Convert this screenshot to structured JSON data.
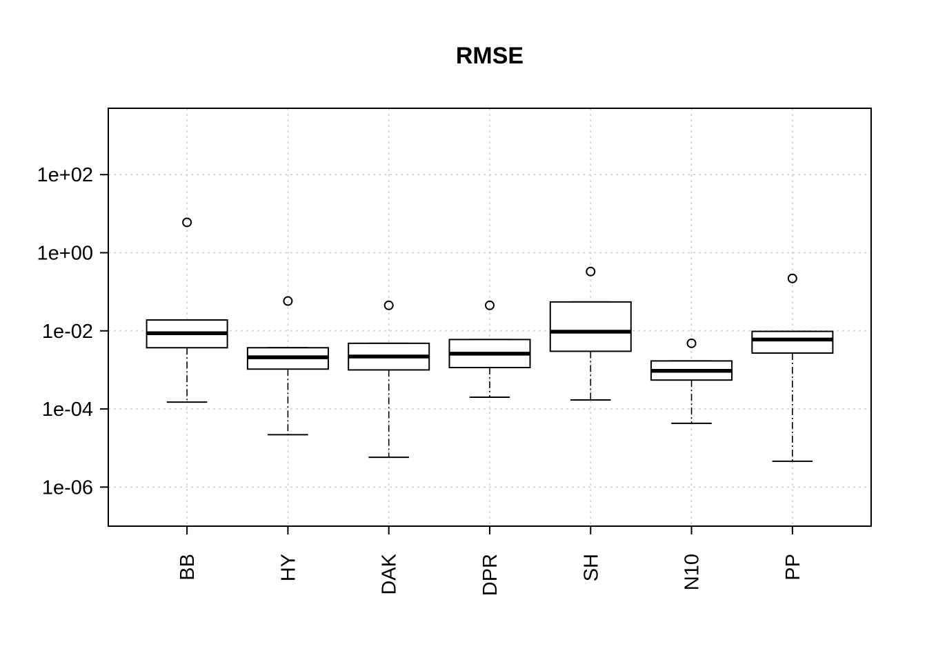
{
  "chart_data": {
    "type": "boxplot",
    "title": "RMSE",
    "xlabel": "",
    "ylabel": "",
    "yscale": "log10",
    "ylim": [
      1e-07,
      5000
    ],
    "yticks": [
      1e-06,
      0.0001,
      0.01,
      1,
      100
    ],
    "ytick_labels": [
      "1e-06",
      "1e-04",
      "1e-02",
      "1e+00",
      "1e+02"
    ],
    "grid": true,
    "categories": [
      "BB",
      "HY",
      "DAK",
      "DPR",
      "SH",
      "N10",
      "PP"
    ],
    "boxes": [
      {
        "name": "BB",
        "whisker_low": 0.00015,
        "q1": 0.0037,
        "median": 0.0087,
        "q3": 0.019,
        "whisker_high": 0.019,
        "outliers": [
          6.0
        ]
      },
      {
        "name": "HY",
        "whisker_low": 2.2e-05,
        "q1": 0.00105,
        "median": 0.0021,
        "q3": 0.0037,
        "whisker_high": 0.0037,
        "outliers": [
          0.058
        ]
      },
      {
        "name": "DAK",
        "whisker_low": 5.8e-06,
        "q1": 0.001,
        "median": 0.0022,
        "q3": 0.0048,
        "whisker_high": 0.0048,
        "outliers": [
          0.045
        ]
      },
      {
        "name": "DPR",
        "whisker_low": 0.0002,
        "q1": 0.00115,
        "median": 0.0026,
        "q3": 0.006,
        "whisker_high": 0.006,
        "outliers": [
          0.045
        ]
      },
      {
        "name": "SH",
        "whisker_low": 0.00017,
        "q1": 0.003,
        "median": 0.0095,
        "q3": 0.055,
        "whisker_high": 0.055,
        "outliers": [
          0.33
        ]
      },
      {
        "name": "N10",
        "whisker_low": 4.3e-05,
        "q1": 0.00055,
        "median": 0.00095,
        "q3": 0.0017,
        "whisker_high": 0.0017,
        "outliers": [
          0.0048
        ]
      },
      {
        "name": "PP",
        "whisker_low": 4.6e-06,
        "q1": 0.0027,
        "median": 0.006,
        "q3": 0.0097,
        "whisker_high": 0.0097,
        "outliers": [
          0.22
        ]
      }
    ]
  }
}
